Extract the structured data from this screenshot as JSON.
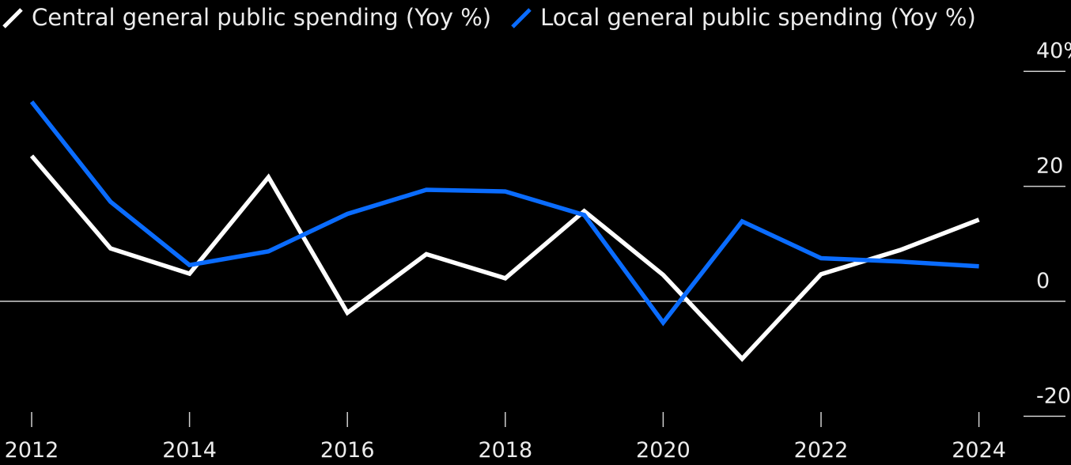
{
  "chart_data": {
    "type": "line",
    "title": "",
    "xlabel": "",
    "ylabel": "",
    "x": [
      2012,
      2013,
      2014,
      2015,
      2016,
      2017,
      2018,
      2019,
      2020,
      2021,
      2022,
      2023,
      2024
    ],
    "x_ticks": [
      "2012",
      "2014",
      "2016",
      "2018",
      "2020",
      "2022",
      "2024"
    ],
    "y_ticks": [
      "40%",
      "20",
      "0",
      "-20"
    ],
    "y_tick_values": [
      40,
      20,
      0,
      -20
    ],
    "ylim": [
      -20,
      40
    ],
    "zero_line": true,
    "legend_position": "top-left",
    "series": [
      {
        "name": "Central general public spending (Yoy %)",
        "color": "#ffffff",
        "values": [
          25.3,
          9.2,
          4.8,
          21.6,
          -2.0,
          8.2,
          4.0,
          15.7,
          4.6,
          -10.0,
          4.7,
          8.9,
          14.2
        ]
      },
      {
        "name": "Local general public spending (Yoy %)",
        "color": "#0a6cff",
        "values": [
          34.7,
          17.3,
          6.3,
          8.7,
          15.2,
          19.4,
          19.1,
          15.0,
          -3.7,
          13.9,
          7.5,
          6.9,
          6.1
        ]
      }
    ]
  }
}
